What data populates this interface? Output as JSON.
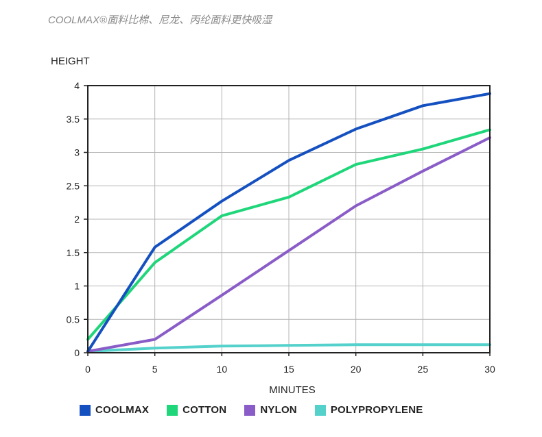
{
  "header": {
    "subtitle": "COOLMAX®面料比棉、尼龙、丙纶面料更快吸湿"
  },
  "chart_data": {
    "type": "line",
    "ylabel": "HEIGHT",
    "xlabel": "MINUTES",
    "xlim": [
      0,
      30
    ],
    "ylim": [
      0,
      4
    ],
    "x_ticks": [
      "0",
      "5",
      "10",
      "15",
      "20",
      "25",
      "30"
    ],
    "y_ticks": [
      "0",
      "0.5",
      "1",
      "1.5",
      "2",
      "2.5",
      "3",
      "3.5",
      "4"
    ],
    "grid": true,
    "legend_position": "bottom",
    "series": [
      {
        "name": "COOLMAX",
        "color": "#1450c0",
        "x": [
          0,
          5,
          10,
          15,
          20,
          25,
          30
        ],
        "values": [
          0.02,
          1.58,
          2.27,
          2.88,
          3.35,
          3.7,
          3.88
        ]
      },
      {
        "name": "COTTON",
        "color": "#1fd67a",
        "x": [
          0,
          5,
          10,
          15,
          20,
          25,
          30
        ],
        "values": [
          0.2,
          1.35,
          2.05,
          2.33,
          2.82,
          3.05,
          3.34
        ]
      },
      {
        "name": "NYLON",
        "color": "#8a5cc8",
        "x": [
          0,
          5,
          10,
          15,
          20,
          25,
          30
        ],
        "values": [
          0.02,
          0.2,
          0.86,
          1.53,
          2.2,
          2.72,
          3.22
        ]
      },
      {
        "name": "POLYPROPYLENE",
        "color": "#55d1cb",
        "x": [
          0,
          5,
          10,
          15,
          20,
          25,
          30
        ],
        "values": [
          0.02,
          0.07,
          0.1,
          0.11,
          0.12,
          0.12,
          0.12
        ]
      }
    ]
  }
}
